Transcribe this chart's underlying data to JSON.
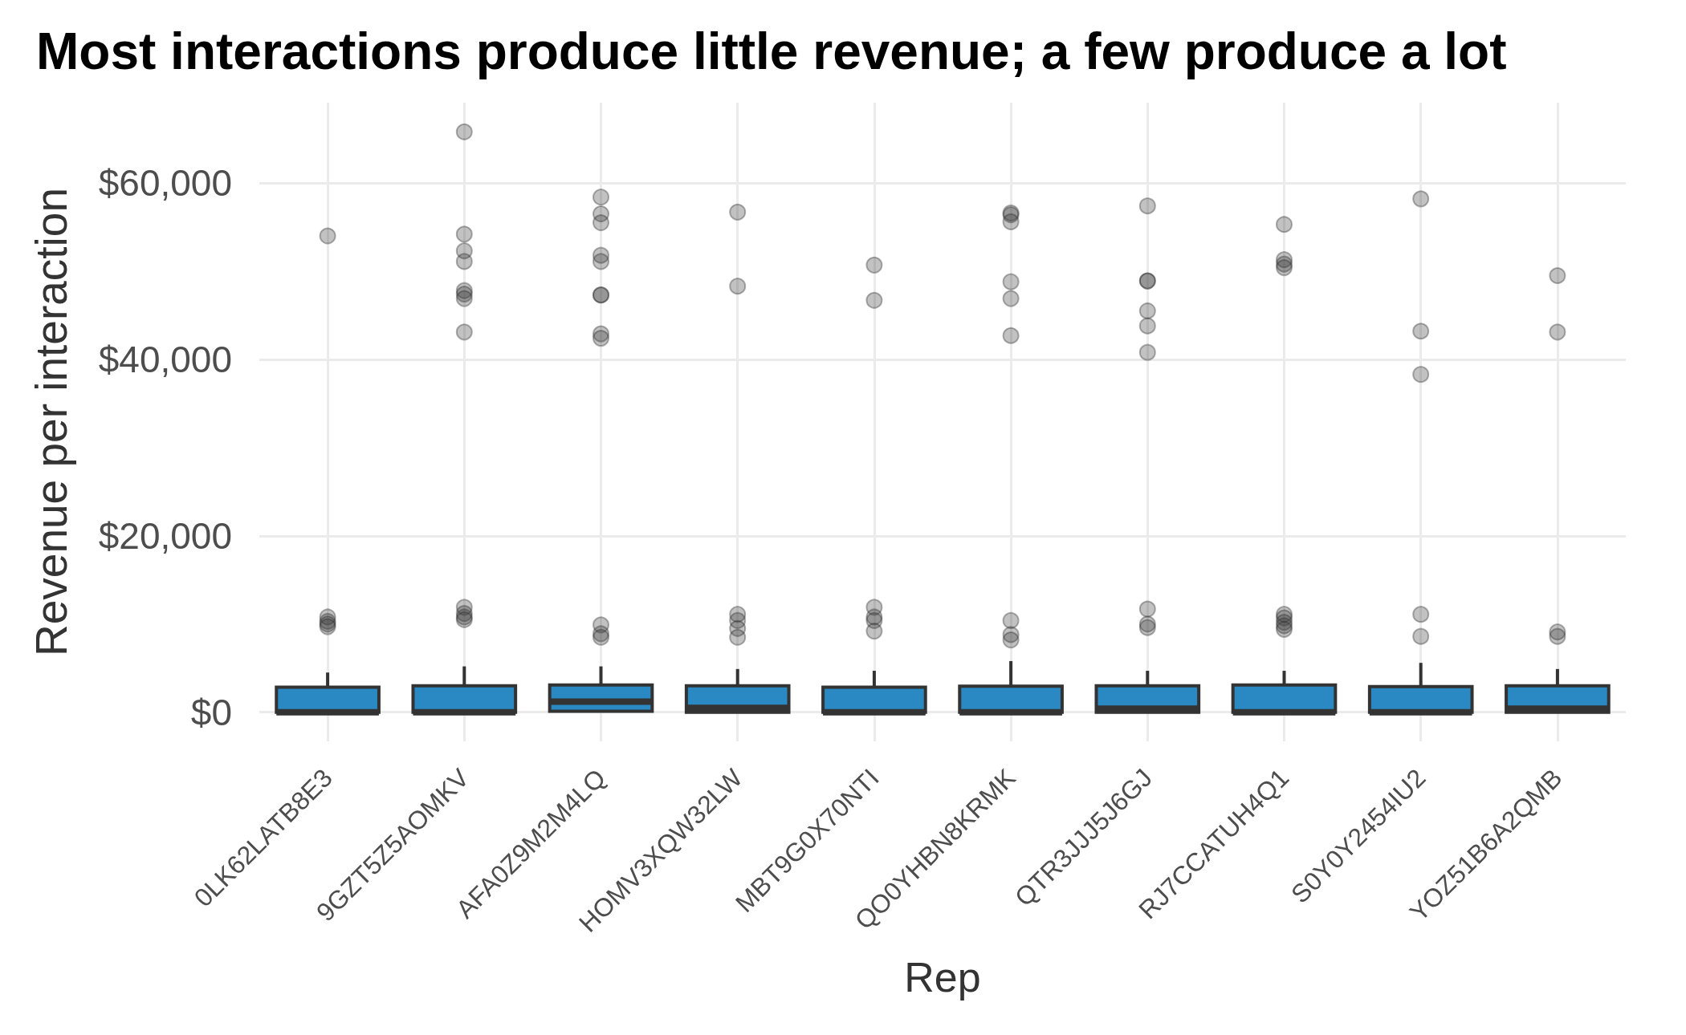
{
  "chart_data": {
    "type": "box",
    "title": "Most interactions produce little revenue; a few produce a lot",
    "xlabel": "Rep",
    "ylabel": "Revenue per interaction",
    "categories": [
      "0LK62LATB8E3",
      "9GZT5Z5AOMKV",
      "AFA0Z9M2M4LQ",
      "HOMV3XQW32LW",
      "MBT9G0X70NTI",
      "QO0YHBN8KRMK",
      "QTR3JJJ5J6GJ",
      "RJ7CCATUH4Q1",
      "S0Y0Y2454IU2",
      "YOZ51B6A2QMB"
    ],
    "color": "#2a89c2",
    "boxes": [
      {
        "q1": 0,
        "median": 0,
        "q3": 2850,
        "high": 4500,
        "outliers": [
          54000,
          10800,
          10300,
          10000,
          9700
        ]
      },
      {
        "q1": 0,
        "median": 0,
        "q3": 3000,
        "high": 5200,
        "outliers": [
          65800,
          54200,
          52300,
          51100,
          47800,
          47400,
          46900,
          43100,
          11900,
          11200,
          10800,
          10500
        ]
      },
      {
        "q1": 100,
        "median": 1200,
        "q3": 3100,
        "high": 5200,
        "outliers": [
          58400,
          56500,
          55500,
          51800,
          51100,
          47300,
          47300,
          42900,
          42400,
          9900,
          8900,
          8500
        ]
      },
      {
        "q1": 0,
        "median": 500,
        "q3": 3000,
        "high": 4900,
        "outliers": [
          56700,
          48300,
          11100,
          10400,
          9500,
          8500
        ]
      },
      {
        "q1": 0,
        "median": 0,
        "q3": 2850,
        "high": 4700,
        "outliers": [
          50700,
          46700,
          11900,
          10800,
          10400,
          9200
        ]
      },
      {
        "q1": 0,
        "median": 0,
        "q3": 2950,
        "high": 5800,
        "outliers": [
          56600,
          56400,
          55600,
          48800,
          46900,
          42700,
          10400,
          8800,
          8200
        ]
      },
      {
        "q1": 0,
        "median": 400,
        "q3": 3000,
        "high": 4700,
        "outliers": [
          57400,
          48900,
          48900,
          45500,
          43800,
          40800,
          11700,
          10000,
          9600
        ]
      },
      {
        "q1": 0,
        "median": 0,
        "q3": 3100,
        "high": 4700,
        "outliers": [
          55300,
          51300,
          50800,
          50400,
          11100,
          10700,
          10200,
          9800,
          9400
        ]
      },
      {
        "q1": 0,
        "median": 0,
        "q3": 2900,
        "high": 5600,
        "outliers": [
          58200,
          43200,
          38300,
          11100,
          8600
        ]
      },
      {
        "q1": 0,
        "median": 400,
        "q3": 3000,
        "high": 4900,
        "outliers": [
          49500,
          43100,
          9100,
          8600
        ]
      }
    ],
    "ylim": [
      -3300,
      69100
    ],
    "yticks": [
      {
        "value": 0,
        "label": "$0"
      },
      {
        "value": 20000,
        "label": "$20,000"
      },
      {
        "value": 40000,
        "label": "$40,000"
      },
      {
        "value": 60000,
        "label": "$60,000"
      }
    ],
    "grid": true
  }
}
